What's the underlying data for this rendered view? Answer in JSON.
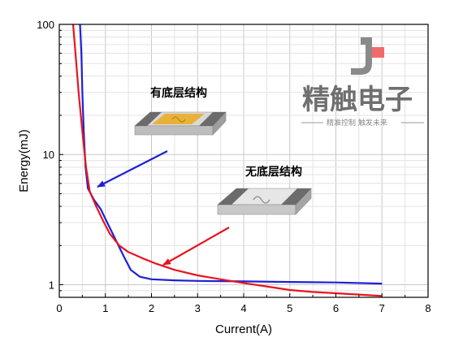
{
  "chart_data": {
    "type": "line",
    "xlabel": "Current(A)",
    "ylabel": "Energy(mJ)",
    "xlim": [
      0,
      8
    ],
    "ylim": [
      0.8,
      100
    ],
    "yscale": "log",
    "grid": true,
    "xticks": [
      0,
      1,
      2,
      3,
      4,
      5,
      6,
      7,
      8
    ],
    "yticks": [
      1,
      10,
      100
    ],
    "series": [
      {
        "color": "#1f1fd6",
        "points": [
          [
            0.45,
            100
          ],
          [
            0.48,
            60
          ],
          [
            0.5,
            30
          ],
          [
            0.53,
            15
          ],
          [
            0.57,
            8
          ],
          [
            0.62,
            5.5
          ],
          [
            0.75,
            4.5
          ],
          [
            0.9,
            3.8
          ],
          [
            1.0,
            3.2
          ],
          [
            1.2,
            2.3
          ],
          [
            1.4,
            1.65
          ],
          [
            1.55,
            1.3
          ],
          [
            1.75,
            1.15
          ],
          [
            2.0,
            1.1
          ],
          [
            2.5,
            1.08
          ],
          [
            3.0,
            1.07
          ],
          [
            4.0,
            1.06
          ],
          [
            5.0,
            1.05
          ],
          [
            6.0,
            1.04
          ],
          [
            7.0,
            1.02
          ]
        ]
      },
      {
        "color": "#e8141e",
        "points": [
          [
            0.3,
            100
          ],
          [
            0.35,
            60
          ],
          [
            0.42,
            30
          ],
          [
            0.5,
            15
          ],
          [
            0.58,
            8
          ],
          [
            0.66,
            5.2
          ],
          [
            0.8,
            4.0
          ],
          [
            0.95,
            3.1
          ],
          [
            1.1,
            2.45
          ],
          [
            1.3,
            2.0
          ],
          [
            1.5,
            1.78
          ],
          [
            1.8,
            1.6
          ],
          [
            2.1,
            1.45
          ],
          [
            2.5,
            1.3
          ],
          [
            3.0,
            1.18
          ],
          [
            3.5,
            1.1
          ],
          [
            4.0,
            1.03
          ],
          [
            4.5,
            0.97
          ],
          [
            5.0,
            0.91
          ],
          [
            5.5,
            0.88
          ],
          [
            6.0,
            0.86
          ],
          [
            6.5,
            0.84
          ],
          [
            7.0,
            0.82
          ]
        ]
      }
    ],
    "annotations": [
      {
        "text": "有底层结构",
        "color": "#1f1fd6"
      },
      {
        "text": "无底层结构",
        "color": "#e8141e"
      }
    ]
  },
  "watermark": {
    "logo_text": "精触电子",
    "slogan": "精准控制 触发未来",
    "accent_color": "#f26b6b"
  }
}
